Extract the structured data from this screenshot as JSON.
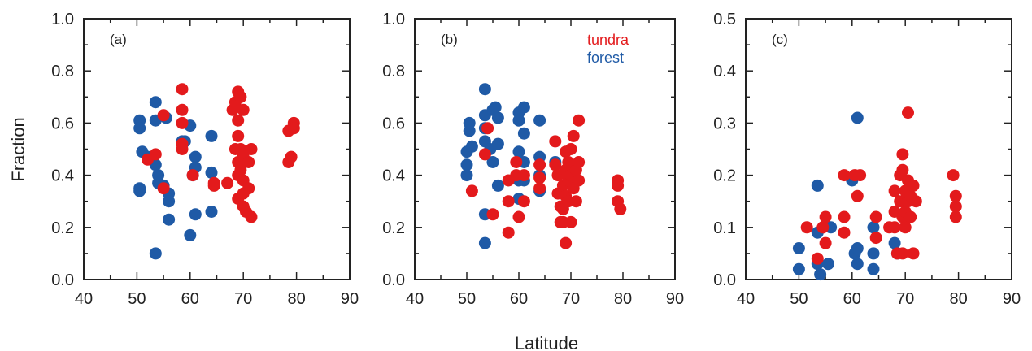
{
  "figure": {
    "ylabel": "Fraction",
    "xlabel": "Latitude",
    "legend": {
      "placement": "top-right of panel (b)",
      "entries": [
        {
          "label": "tundra",
          "color": "#e31a1c"
        },
        {
          "label": "forest",
          "color": "#1f5aa6"
        }
      ]
    }
  },
  "colors": {
    "tundra": "#e31a1c",
    "forest": "#1f5aa6"
  },
  "chart_data": [
    {
      "type": "scatter",
      "panel_label": "(a)",
      "xlim": [
        40,
        90
      ],
      "ylim": [
        0,
        1
      ],
      "xticks": [
        40,
        50,
        60,
        70,
        80,
        90
      ],
      "yticks": [
        0.0,
        0.2,
        0.4,
        0.6,
        0.8,
        1.0
      ],
      "ytick_labels": [
        "0.0",
        "0.2",
        "0.4",
        "0.6",
        "0.8",
        "1.0"
      ],
      "grid": false,
      "series": [
        {
          "name": "forest",
          "color": "#1f5aa6",
          "points": [
            [
              50.5,
              0.61
            ],
            [
              50.5,
              0.58
            ],
            [
              50.5,
              0.35
            ],
            [
              50.5,
              0.34
            ],
            [
              51,
              0.49
            ],
            [
              52,
              0.47
            ],
            [
              53.5,
              0.68
            ],
            [
              53.5,
              0.61
            ],
            [
              53.5,
              0.44
            ],
            [
              54,
              0.4
            ],
            [
              54,
              0.37
            ],
            [
              53.5,
              0.1
            ],
            [
              55,
              0.36
            ],
            [
              55.5,
              0.62
            ],
            [
              56,
              0.33
            ],
            [
              56,
              0.3
            ],
            [
              56,
              0.23
            ],
            [
              58.5,
              0.53
            ],
            [
              59,
              0.53
            ],
            [
              60,
              0.59
            ],
            [
              60,
              0.17
            ],
            [
              60.5,
              0.4
            ],
            [
              61,
              0.47
            ],
            [
              61,
              0.43
            ],
            [
              61,
              0.25
            ],
            [
              64,
              0.41
            ],
            [
              64,
              0.26
            ],
            [
              64,
              0.55
            ]
          ]
        },
        {
          "name": "tundra",
          "color": "#e31a1c",
          "points": [
            [
              52,
              0.46
            ],
            [
              53.5,
              0.48
            ],
            [
              55,
              0.63
            ],
            [
              55,
              0.35
            ],
            [
              58.5,
              0.73
            ],
            [
              58.5,
              0.65
            ],
            [
              58.5,
              0.6
            ],
            [
              58.5,
              0.52
            ],
            [
              58.5,
              0.5
            ],
            [
              60.5,
              0.4
            ],
            [
              64.5,
              0.36
            ],
            [
              64.5,
              0.37
            ],
            [
              67,
              0.37
            ],
            [
              68,
              0.65
            ],
            [
              68.5,
              0.68
            ],
            [
              68.5,
              0.5
            ],
            [
              69,
              0.72
            ],
            [
              69,
              0.61
            ],
            [
              69,
              0.55
            ],
            [
              69,
              0.45
            ],
            [
              69,
              0.4
            ],
            [
              69,
              0.31
            ],
            [
              69.5,
              0.7
            ],
            [
              69.5,
              0.5
            ],
            [
              69.5,
              0.42
            ],
            [
              70,
              0.65
            ],
            [
              70,
              0.48
            ],
            [
              70,
              0.38
            ],
            [
              70,
              0.33
            ],
            [
              70,
              0.28
            ],
            [
              70.5,
              0.26
            ],
            [
              71,
              0.45
            ],
            [
              71,
              0.35
            ],
            [
              71.5,
              0.5
            ],
            [
              71.5,
              0.24
            ],
            [
              78.5,
              0.57
            ],
            [
              78.5,
              0.45
            ],
            [
              79,
              0.47
            ],
            [
              79.5,
              0.6
            ],
            [
              79.5,
              0.58
            ]
          ]
        }
      ]
    },
    {
      "type": "scatter",
      "panel_label": "(b)",
      "xlim": [
        40,
        90
      ],
      "ylim": [
        0,
        1
      ],
      "xticks": [
        40,
        50,
        60,
        70,
        80,
        90
      ],
      "yticks": [
        0.0,
        0.2,
        0.4,
        0.6,
        0.8,
        1.0
      ],
      "ytick_labels": [
        "0.0",
        "0.2",
        "0.4",
        "0.6",
        "0.8",
        "1.0"
      ],
      "grid": false,
      "series": [
        {
          "name": "forest",
          "color": "#1f5aa6",
          "points": [
            [
              50,
              0.49
            ],
            [
              50,
              0.44
            ],
            [
              50,
              0.4
            ],
            [
              50.5,
              0.6
            ],
            [
              50.5,
              0.57
            ],
            [
              51,
              0.51
            ],
            [
              53.5,
              0.73
            ],
            [
              53.5,
              0.63
            ],
            [
              53.5,
              0.58
            ],
            [
              53.5,
              0.53
            ],
            [
              53.5,
              0.25
            ],
            [
              53.5,
              0.14
            ],
            [
              54.5,
              0.5
            ],
            [
              55,
              0.65
            ],
            [
              55,
              0.45
            ],
            [
              55.5,
              0.66
            ],
            [
              56,
              0.62
            ],
            [
              56,
              0.52
            ],
            [
              56,
              0.36
            ],
            [
              60,
              0.64
            ],
            [
              60,
              0.61
            ],
            [
              60,
              0.49
            ],
            [
              60,
              0.38
            ],
            [
              60,
              0.31
            ],
            [
              61,
              0.66
            ],
            [
              61,
              0.56
            ],
            [
              61,
              0.45
            ],
            [
              61,
              0.38
            ],
            [
              64,
              0.61
            ],
            [
              64,
              0.47
            ],
            [
              64,
              0.4
            ],
            [
              64,
              0.34
            ],
            [
              67,
              0.45
            ]
          ]
        },
        {
          "name": "tundra",
          "color": "#e31a1c",
          "points": [
            [
              51,
              0.34
            ],
            [
              53.5,
              0.48
            ],
            [
              54,
              0.58
            ],
            [
              55,
              0.25
            ],
            [
              58,
              0.38
            ],
            [
              58,
              0.3
            ],
            [
              58,
              0.18
            ],
            [
              59.5,
              0.45
            ],
            [
              59.5,
              0.4
            ],
            [
              60,
              0.24
            ],
            [
              61,
              0.3
            ],
            [
              61,
              0.4
            ],
            [
              64,
              0.44
            ],
            [
              64,
              0.39
            ],
            [
              64,
              0.35
            ],
            [
              67,
              0.53
            ],
            [
              67,
              0.44
            ],
            [
              67.5,
              0.4
            ],
            [
              67.5,
              0.33
            ],
            [
              68,
              0.28
            ],
            [
              68,
              0.22
            ],
            [
              68.5,
              0.36
            ],
            [
              68.5,
              0.27
            ],
            [
              68.5,
              0.22
            ],
            [
              69,
              0.49
            ],
            [
              69,
              0.42
            ],
            [
              69,
              0.32
            ],
            [
              69,
              0.14
            ],
            [
              69.5,
              0.45
            ],
            [
              69.5,
              0.38
            ],
            [
              69.5,
              0.3
            ],
            [
              70,
              0.5
            ],
            [
              70,
              0.4
            ],
            [
              70,
              0.22
            ],
            [
              70.5,
              0.55
            ],
            [
              70.5,
              0.35
            ],
            [
              71,
              0.42
            ],
            [
              71,
              0.3
            ],
            [
              71.5,
              0.61
            ],
            [
              71.5,
              0.45
            ],
            [
              71.5,
              0.38
            ],
            [
              79,
              0.38
            ],
            [
              79,
              0.36
            ],
            [
              79,
              0.3
            ],
            [
              79.5,
              0.27
            ]
          ]
        }
      ]
    },
    {
      "type": "scatter",
      "panel_label": "(c)",
      "xlim": [
        40,
        90
      ],
      "ylim": [
        0,
        0.5
      ],
      "xticks": [
        40,
        50,
        60,
        70,
        80,
        90
      ],
      "yticks": [
        0.0,
        0.1,
        0.2,
        0.3,
        0.4,
        0.5
      ],
      "ytick_labels": [
        "0.0",
        "0.1",
        "0.2",
        "0.3",
        "0.4",
        "0.5"
      ],
      "grid": false,
      "series": [
        {
          "name": "forest",
          "color": "#1f5aa6",
          "points": [
            [
              50,
              0.06
            ],
            [
              50,
              0.02
            ],
            [
              53.5,
              0.18
            ],
            [
              53.5,
              0.09
            ],
            [
              53.5,
              0.03
            ],
            [
              54,
              0.01
            ],
            [
              55.5,
              0.03
            ],
            [
              56,
              0.1
            ],
            [
              60,
              0.19
            ],
            [
              60.5,
              0.05
            ],
            [
              61,
              0.31
            ],
            [
              61,
              0.06
            ],
            [
              61,
              0.03
            ],
            [
              64,
              0.1
            ],
            [
              64,
              0.05
            ],
            [
              64,
              0.02
            ],
            [
              68,
              0.07
            ],
            [
              68.5,
              0.05
            ]
          ]
        },
        {
          "name": "tundra",
          "color": "#e31a1c",
          "points": [
            [
              51.5,
              0.1
            ],
            [
              53.5,
              0.04
            ],
            [
              54.5,
              0.1
            ],
            [
              55,
              0.12
            ],
            [
              55,
              0.07
            ],
            [
              58.5,
              0.2
            ],
            [
              58.5,
              0.12
            ],
            [
              58.5,
              0.09
            ],
            [
              60.5,
              0.2
            ],
            [
              61,
              0.16
            ],
            [
              61.5,
              0.2
            ],
            [
              64.5,
              0.12
            ],
            [
              64.5,
              0.08
            ],
            [
              67,
              0.1
            ],
            [
              68,
              0.17
            ],
            [
              68,
              0.13
            ],
            [
              68,
              0.1
            ],
            [
              68.5,
              0.05
            ],
            [
              69,
              0.2
            ],
            [
              69,
              0.15
            ],
            [
              69.5,
              0.24
            ],
            [
              69.5,
              0.21
            ],
            [
              69.5,
              0.12
            ],
            [
              69.5,
              0.05
            ],
            [
              70,
              0.17
            ],
            [
              70,
              0.13
            ],
            [
              70,
              0.1
            ],
            [
              70.5,
              0.32
            ],
            [
              70.5,
              0.19
            ],
            [
              70.5,
              0.15
            ],
            [
              71,
              0.16
            ],
            [
              71,
              0.12
            ],
            [
              71.5,
              0.18
            ],
            [
              71.5,
              0.05
            ],
            [
              72,
              0.15
            ],
            [
              79,
              0.2
            ],
            [
              79.5,
              0.16
            ],
            [
              79.5,
              0.14
            ],
            [
              79.5,
              0.12
            ]
          ]
        }
      ]
    }
  ]
}
